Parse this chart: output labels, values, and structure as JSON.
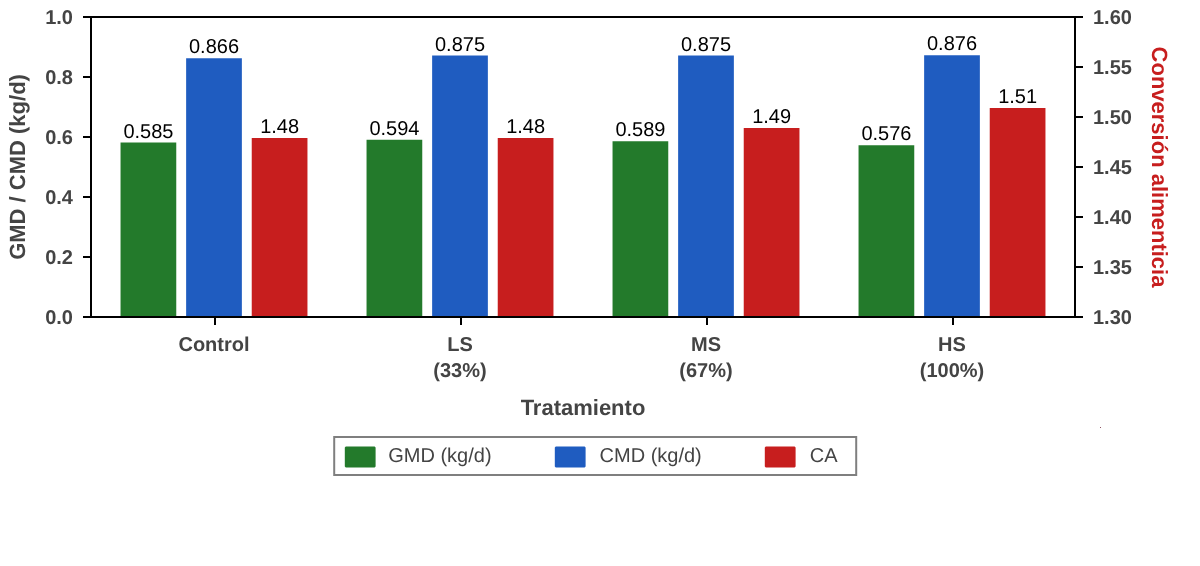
{
  "chart_data": {
    "type": "bar",
    "xlabel": "Tratamiento",
    "ylabel": "GMD / CMD (kg/d)",
    "y2label": "Conversión alimenticia",
    "categories": [
      "Control",
      "LS\n(33%)",
      "MS\n(67%)",
      "HS\n(100%)"
    ],
    "series": [
      {
        "name": "GMD (kg/d)",
        "color": "#237a2b",
        "values": [
          0.585,
          0.594,
          0.589,
          0.576
        ]
      },
      {
        "name": "CMD (kg/d)",
        "color": "#1f5cc0",
        "values": [
          0.866,
          0.875,
          0.875,
          0.876
        ]
      },
      {
        "name": "CA",
        "color": "#c71e1e",
        "values": [
          1.48,
          1.48,
          1.49,
          1.51
        ],
        "axis": "y2"
      }
    ],
    "ylim": [
      0,
      1.0
    ],
    "yticks": [
      {
        "value": 0,
        "label": "0.0"
      },
      0.2,
      0.4,
      0.6,
      0.8,
      {
        "value": 1.0,
        "label": "1.0"
      }
    ],
    "y2lim": [
      1.3,
      1.6
    ],
    "y2ticks": [
      {
        "value": 1.3,
        "label": "1.30"
      },
      1.35,
      {
        "value": 1.4,
        "label": "1.40"
      },
      1.45,
      {
        "value": 1.5,
        "label": "1.50"
      },
      1.55,
      {
        "value": 1.6,
        "label": "1.60"
      }
    ],
    "data_labels": true,
    "legend": "bottom",
    "grid": false
  }
}
